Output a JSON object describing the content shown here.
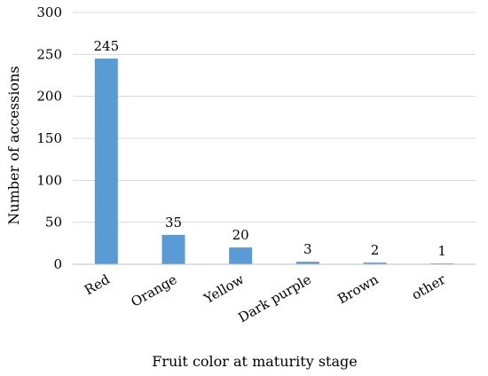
{
  "chart_data": {
    "type": "bar",
    "categories": [
      "Red",
      "Orange",
      "Yellow",
      "Dark purple",
      "Brown",
      "other"
    ],
    "values": [
      245,
      35,
      20,
      3,
      2,
      1
    ],
    "data_labels": [
      "245",
      "35",
      "20",
      "3",
      "2",
      "1"
    ],
    "xlabel": "Fruit color at maturity stage",
    "ylabel": "Number of accessions",
    "ylim": [
      0,
      300
    ],
    "yticks": [
      0,
      50,
      100,
      150,
      200,
      250,
      300
    ],
    "grid": true,
    "bar_color": "#5b9bd5",
    "grid_color": "#d9d9d9",
    "axis_color": "#bfbfbf"
  }
}
